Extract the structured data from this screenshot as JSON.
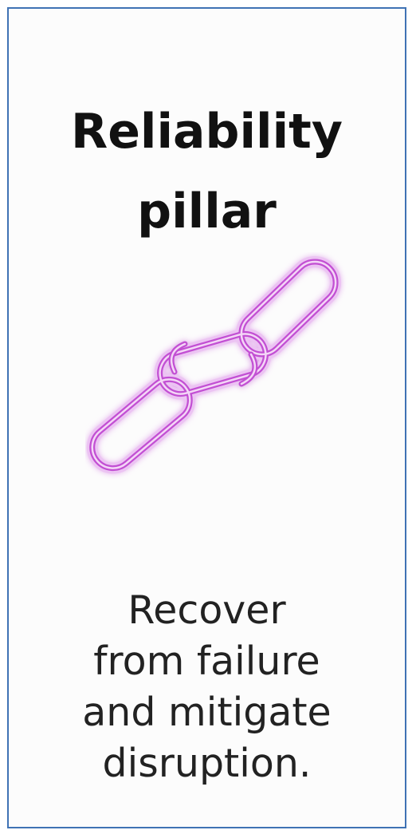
{
  "card": {
    "title_line1": "Reliability",
    "title_line2": "pillar",
    "icon": "chain-link-icon",
    "description_lines": [
      "Recover",
      "from failure",
      "and mitigate",
      "disruption."
    ]
  },
  "colors": {
    "border": "#3f72b4",
    "icon_stroke": "#c04fd0",
    "icon_glow": "#e6b0f0",
    "text": "#111111"
  }
}
